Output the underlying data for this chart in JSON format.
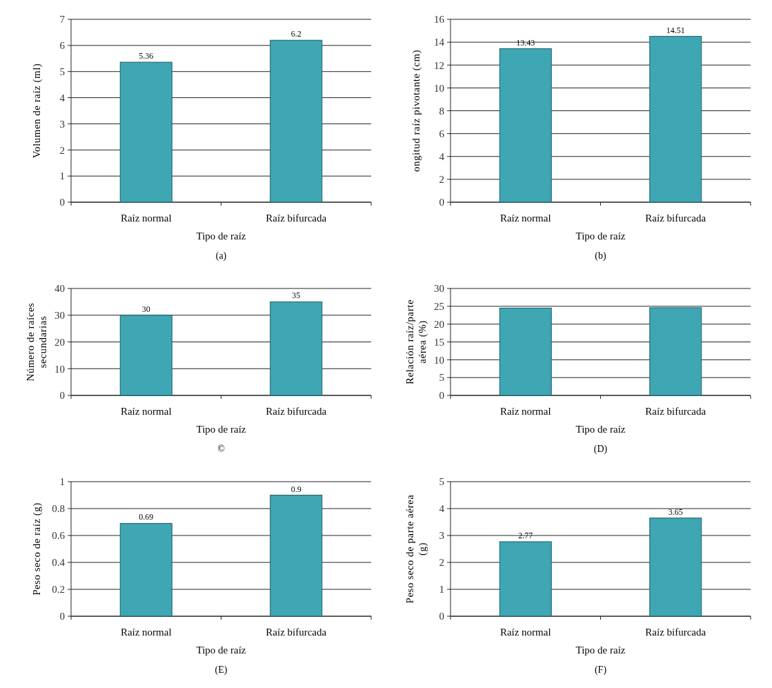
{
  "chart_data": [
    {
      "type": "bar",
      "categories": [
        "Raíz normal",
        "Raíz bifurcada"
      ],
      "values": [
        5.36,
        6.2
      ],
      "color": "#3fa6b3",
      "ylabel": "Volumen de raíz (ml)",
      "xlabel": "Tipo de raíz",
      "ylim": [
        0,
        7
      ],
      "yticks": [
        0,
        1,
        2,
        3,
        4,
        5,
        6,
        7
      ],
      "grid": "y",
      "data_labels": true,
      "annotations": [
        "(a)"
      ]
    },
    {
      "type": "bar",
      "categories": [
        "Raíz normal",
        "Raíz bifurcada"
      ],
      "values": [
        13.43,
        14.51
      ],
      "color": "#3fa6b3",
      "ylabel": "ongitud raíz pivotante (cm)",
      "xlabel": "Tipo de raíz",
      "ylim": [
        0,
        16
      ],
      "yticks": [
        0,
        2,
        4,
        6,
        8,
        10,
        12,
        14,
        16
      ],
      "grid": "y",
      "data_labels": true,
      "annotations": [
        "(b)"
      ]
    },
    {
      "type": "bar",
      "categories": [
        "Raíz normal",
        "Raíz bifurcada"
      ],
      "values": [
        30,
        35
      ],
      "color": "#3fa6b3",
      "ylabel": "Número de raíces secundarias",
      "xlabel": "Tipo de raíz",
      "ylim": [
        0,
        40
      ],
      "yticks": [
        0,
        10,
        20,
        30,
        40
      ],
      "grid": "y",
      "data_labels": true,
      "annotations": [
        "©"
      ]
    },
    {
      "type": "bar",
      "categories": [
        "Raíz normal",
        "Raíz bifurcada"
      ],
      "values": [
        24.5,
        24.6
      ],
      "color": "#3fa6b3",
      "ylabel": "Relación raíz/parte aérea (%)",
      "xlabel": "Tipo de raíz",
      "ylim": [
        0,
        30
      ],
      "yticks": [
        0,
        5,
        10,
        15,
        20,
        25,
        30
      ],
      "grid": "y",
      "annotations": [
        "(D)"
      ]
    },
    {
      "type": "bar",
      "categories": [
        "Raíz normal",
        "Raíz bifurcada"
      ],
      "values": [
        0.69,
        0.9
      ],
      "color": "#3fa6b3",
      "ylabel": "Peso seco de raíz (g)",
      "xlabel": "Tipo de raíz",
      "ylim": [
        0,
        1
      ],
      "yticks": [
        0,
        0.2,
        0.4,
        0.6,
        0.8,
        1
      ],
      "grid": "y",
      "data_labels": true,
      "annotations": [
        "(E)"
      ]
    },
    {
      "type": "bar",
      "categories": [
        "Raíz normal",
        "Raíz bifurcada"
      ],
      "values": [
        2.77,
        3.65
      ],
      "color": "#3fa6b3",
      "ylabel": "Peso seco de parte aérea (g)",
      "xlabel": "Tipo de raíz",
      "ylim": [
        0,
        5
      ],
      "yticks": [
        0,
        1,
        2,
        3,
        4,
        5
      ],
      "grid": "y",
      "data_labels": true,
      "annotations": [
        "(F)"
      ]
    }
  ]
}
